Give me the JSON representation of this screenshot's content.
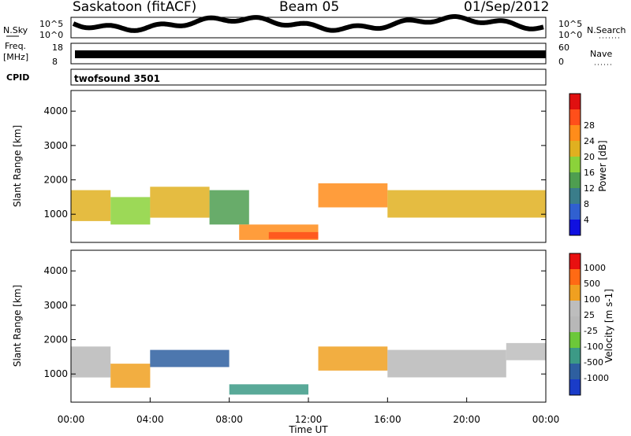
{
  "header": {
    "site": "Saskatoon (fitACF)",
    "beam": "Beam 05",
    "date": "01/Sep/2012"
  },
  "noise_panel": {
    "left_label": "N.Sky",
    "left_ticks": [
      "10^5",
      "10^0"
    ],
    "right_label": "N.Search",
    "right_ticks": [
      "10^5",
      "10^0"
    ]
  },
  "freq_panel": {
    "left_label_1": "Freq.",
    "left_label_2": "[MHz]",
    "left_ticks": [
      "18",
      "8"
    ],
    "right_label": "Nave",
    "right_ticks": [
      "60",
      "0"
    ]
  },
  "cpid": {
    "label": "CPID",
    "value": "twofsound 3501"
  },
  "chart_data": [
    {
      "type": "heatmap",
      "parameter": "Power",
      "ylabel": "Slant Range [km]",
      "ylim": [
        180,
        4600
      ],
      "yticks": [
        1000,
        2000,
        3000,
        4000
      ],
      "xlim_hours": [
        0,
        24
      ],
      "colorbar": {
        "label": "Power [dB]",
        "range": [
          0,
          32
        ],
        "ticks": [
          "4",
          "8",
          "12",
          "16",
          "20",
          "24",
          "28"
        ],
        "colors": [
          "#1010e0",
          "#3060d0",
          "#3a7d8a",
          "#4e9e50",
          "#8bd23a",
          "#e0b020",
          "#ff8c1a",
          "#ff4f1a",
          "#e01010"
        ]
      },
      "bands": [
        {
          "start": 0.0,
          "end": 2.0,
          "low": 800,
          "high": 1700,
          "value": 18
        },
        {
          "start": 2.0,
          "end": 4.0,
          "low": 700,
          "high": 1500,
          "value": 17
        },
        {
          "start": 4.0,
          "end": 7.0,
          "low": 900,
          "high": 1800,
          "value": 20
        },
        {
          "start": 7.0,
          "end": 9.0,
          "low": 700,
          "high": 1700,
          "value": 14
        },
        {
          "start": 8.5,
          "end": 12.5,
          "low": 250,
          "high": 700,
          "value": 24
        },
        {
          "start": 10.0,
          "end": 12.5,
          "low": 280,
          "high": 480,
          "value": 28
        },
        {
          "start": 12.5,
          "end": 16.0,
          "low": 1200,
          "high": 1900,
          "value": 24
        },
        {
          "start": 16.0,
          "end": 24.0,
          "low": 900,
          "high": 1700,
          "value": 18
        }
      ]
    },
    {
      "type": "heatmap",
      "parameter": "Velocity",
      "ylabel": "Slant Range [km]",
      "ylim": [
        180,
        4600
      ],
      "yticks": [
        1000,
        2000,
        3000,
        4000
      ],
      "xlim_hours": [
        0,
        24
      ],
      "colorbar": {
        "label": "Velocity [m s-1]",
        "ticks": [
          "1000",
          "500",
          "100",
          "25",
          "-25",
          "-100",
          "-500",
          "-1000"
        ],
        "colors": [
          "#1a3cc8",
          "#2e5fa0",
          "#3c9a86",
          "#6cc83a",
          "#b8b8b8",
          "#bdbdbd",
          "#f0a020",
          "#ff6a14",
          "#e81010"
        ]
      },
      "bands": [
        {
          "start": 0.0,
          "end": 2.0,
          "low": 900,
          "high": 1800,
          "value": -25
        },
        {
          "start": 2.0,
          "end": 4.0,
          "low": 600,
          "high": 1300,
          "value": -500
        },
        {
          "start": 4.0,
          "end": 8.0,
          "low": 1200,
          "high": 1700,
          "value": 500
        },
        {
          "start": 8.0,
          "end": 12.0,
          "low": 400,
          "high": 700,
          "value": 100
        },
        {
          "start": 12.5,
          "end": 16.0,
          "low": 1100,
          "high": 1800,
          "value": -500
        },
        {
          "start": 16.0,
          "end": 22.0,
          "low": 900,
          "high": 1700,
          "value": -25
        },
        {
          "start": 22.0,
          "end": 24.0,
          "low": 1400,
          "high": 1900,
          "value": -100
        }
      ]
    }
  ],
  "x_axis": {
    "ticks": [
      "00:00",
      "04:00",
      "08:00",
      "12:00",
      "16:00",
      "20:00",
      "00:00"
    ],
    "label": "Time UT"
  }
}
